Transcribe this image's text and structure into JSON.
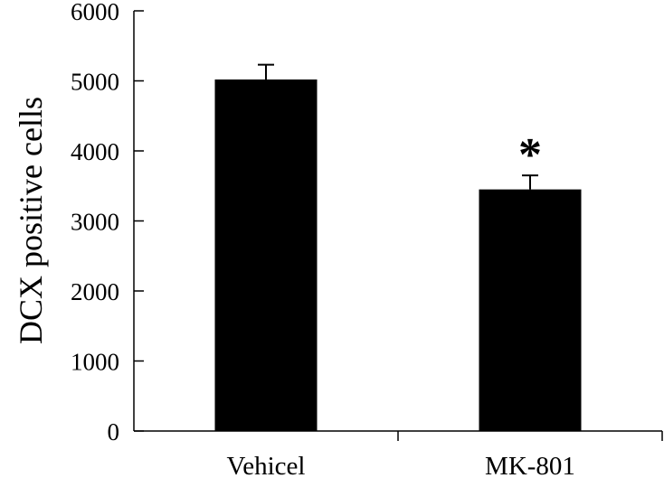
{
  "chart_data": {
    "type": "bar",
    "title": "",
    "xlabel": "",
    "ylabel": "DCX positive cells",
    "categories": [
      "Vehicel",
      "MK-801"
    ],
    "values": [
      5020,
      3450
    ],
    "errors": [
      210,
      200
    ],
    "annotations": [
      "",
      "*"
    ],
    "ylim": [
      0,
      6000
    ],
    "yticks": [
      "0",
      "1000",
      "2000",
      "3000",
      "4000",
      "5000",
      "6000"
    ],
    "grid": false,
    "bar_color": "#000000"
  }
}
